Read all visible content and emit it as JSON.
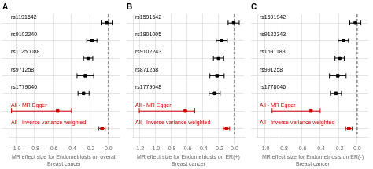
{
  "chart_data": [
    {
      "type": "forest",
      "title": "A",
      "xlabel": "MR effect size for Endometriosis on overall Breast cancer",
      "categories": [
        "rs1191642",
        "rs9102240",
        "rs11250088",
        "rs971258",
        "rs1779046",
        "All - MR Egger",
        "All - Inverse variance weighted"
      ],
      "values": [
        -0.02,
        -0.18,
        -0.22,
        -0.25,
        -0.27,
        -0.55,
        -0.07
      ],
      "xerr_low": [
        0.06,
        0.055,
        0.05,
        0.09,
        0.06,
        0.5,
        0.035
      ],
      "xerr_high": [
        0.06,
        0.055,
        0.05,
        0.09,
        0.06,
        0.15,
        0.035
      ],
      "colors": [
        "#000000",
        "#000000",
        "#000000",
        "#000000",
        "#000000",
        "#cc0000",
        "#cc0000"
      ],
      "ref_line": 0,
      "xlim": [
        -1.08,
        0.12
      ],
      "xticks": [
        {
          "value": -1.0,
          "label": "-1.0"
        },
        -0.8,
        -0.6,
        -0.4,
        -0.2,
        {
          "value": 0,
          "label": "0.0"
        }
      ],
      "grid": true
    },
    {
      "type": "forest",
      "title": "B",
      "xlabel": "MR effect size for Endometriosis on ER(+) Breast cancer",
      "categories": [
        "rs1591642",
        "rs1801005",
        "rs9102243",
        "rs871258",
        "rs1779048",
        "All - MR Egger",
        "All - Inverse variance weighted"
      ],
      "values": [
        -0.01,
        -0.16,
        -0.2,
        -0.22,
        -0.25,
        -0.62,
        -0.1
      ],
      "xerr_low": [
        0.07,
        0.07,
        0.065,
        0.09,
        0.07,
        0.58,
        0.04
      ],
      "xerr_high": [
        0.07,
        0.07,
        0.065,
        0.09,
        0.07,
        0.12,
        0.04
      ],
      "colors": [
        "#000000",
        "#000000",
        "#000000",
        "#000000",
        "#000000",
        "#cc0000",
        "#cc0000"
      ],
      "ref_line": 0,
      "xlim": [
        -1.28,
        0.12
      ],
      "xticks": [
        -1.2,
        {
          "value": -1.0,
          "label": "-1.0"
        },
        -0.8,
        -0.6,
        -0.4,
        -0.2,
        {
          "value": 0,
          "label": "0.0"
        }
      ],
      "grid": true
    },
    {
      "type": "forest",
      "title": "C",
      "xlabel": "MR effect size for Endometriosis on ER(-) Breast cancer",
      "categories": [
        "rs1591942",
        "rs9122343",
        "rs1691183",
        "rs991258",
        "rs1778046",
        "All - MR Egger",
        "All - Inverse variance weighted"
      ],
      "values": [
        -0.02,
        -0.15,
        -0.19,
        -0.21,
        -0.23,
        -0.5,
        -0.09
      ],
      "xerr_low": [
        0.06,
        0.055,
        0.05,
        0.09,
        0.06,
        0.42,
        0.035
      ],
      "xerr_high": [
        0.06,
        0.055,
        0.05,
        0.09,
        0.06,
        0.1,
        0.035
      ],
      "colors": [
        "#000000",
        "#000000",
        "#000000",
        "#000000",
        "#000000",
        "#cc0000",
        "#cc0000"
      ],
      "ref_line": 0,
      "xlim": [
        -1.08,
        0.12
      ],
      "xticks": [
        {
          "value": -1.0,
          "label": "-1.0"
        },
        -0.8,
        -0.6,
        -0.4,
        -0.2,
        {
          "value": 0,
          "label": "0.0"
        }
      ],
      "grid": true
    }
  ]
}
